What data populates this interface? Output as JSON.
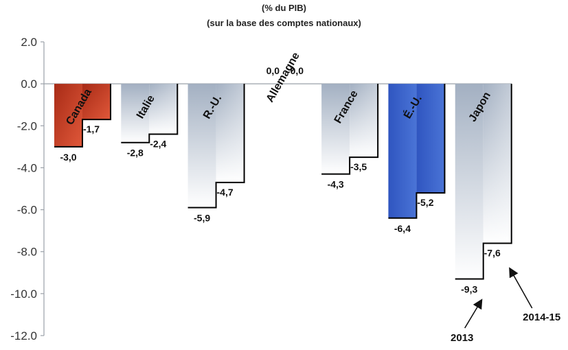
{
  "chart_data": {
    "type": "bar",
    "subtitle_lines": [
      "(% du PIB)",
      "(sur la base des comptes nationaux)"
    ],
    "categories": [
      "Canada",
      "Italie",
      "R.-U.",
      "Allemagne",
      "France",
      "É.-U.",
      "Japon"
    ],
    "series": [
      {
        "name": "2013",
        "values": [
          -3.0,
          -2.8,
          -5.9,
          0.0,
          -4.3,
          -6.4,
          -9.3
        ],
        "labels": [
          "-3,0",
          "-2,8",
          "-5,9",
          "0,0",
          "-4,3",
          "-6,4",
          "-9,3"
        ]
      },
      {
        "name": "2014-15",
        "values": [
          -1.7,
          -2.4,
          -4.7,
          0.0,
          -3.5,
          -5.2,
          -7.6
        ],
        "labels": [
          "-1,7",
          "-2,4",
          "-4,7",
          "0,0",
          "-3,5",
          "-5,2",
          "-7,6"
        ]
      }
    ],
    "ylim": [
      -12,
      2
    ],
    "yticks": [
      2,
      0,
      -2,
      -4,
      -6,
      -8,
      -10,
      -12
    ],
    "ytick_labels": [
      "2.0",
      "0.0",
      "-2.0",
      "-4.0",
      "-6.0",
      "-8.0",
      "-10.0",
      "-12.0"
    ],
    "grid": false,
    "colors": {
      "canada": "#c0391f",
      "etats_unis": "#3d63c9",
      "gray_top": "#a3b0c2",
      "gray_bottom": "#ffffff",
      "outline": "#000000"
    }
  }
}
